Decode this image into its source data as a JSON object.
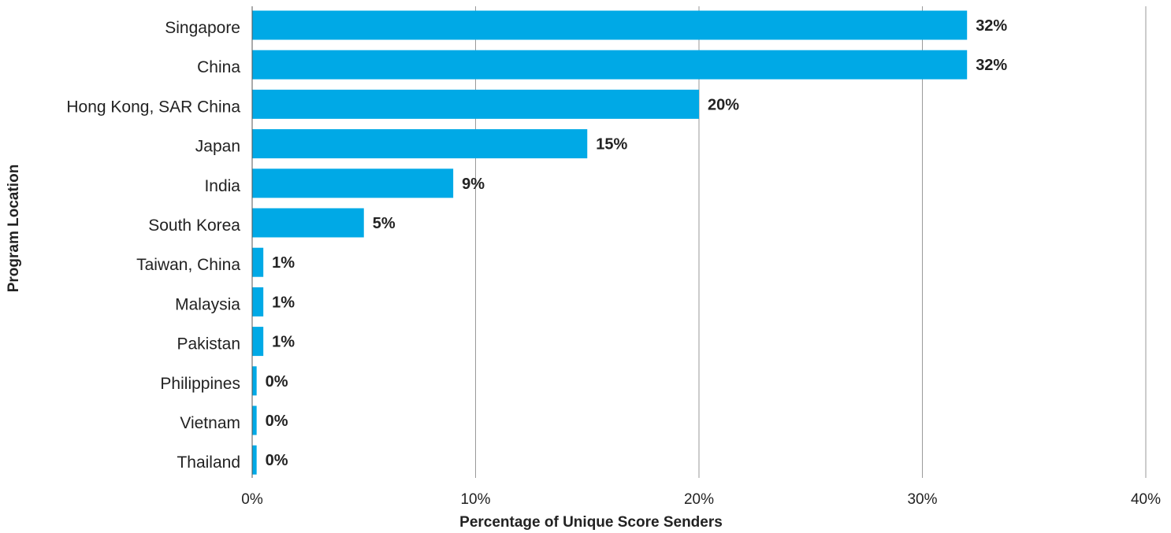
{
  "chart_data": {
    "type": "bar",
    "orientation": "horizontal",
    "categories": [
      "Singapore",
      "China",
      "Hong Kong, SAR China",
      "Japan",
      "India",
      "South Korea",
      "Taiwan, China",
      "Malaysia",
      "Pakistan",
      "Philippines",
      "Vietnam",
      "Thailand"
    ],
    "values": [
      32,
      32,
      20,
      15,
      9,
      5,
      0.5,
      0.5,
      0.5,
      0.2,
      0.2,
      0.2
    ],
    "value_labels": [
      "32%",
      "32%",
      "20%",
      "15%",
      "9%",
      "5%",
      "1%",
      "1%",
      "1%",
      "0%",
      "0%",
      "0%"
    ],
    "xticks": [
      0,
      10,
      20,
      30,
      40
    ],
    "xtick_labels": [
      "0%",
      "10%",
      "20%",
      "30%",
      "40%"
    ],
    "xlim": [
      0,
      40
    ],
    "xlabel": "Percentage of Unique Score Senders",
    "ylabel": "Program Location",
    "grid": "vertical",
    "bar_color": "#00A9E6",
    "gridline_color": "#9a9a9a",
    "text_color": "#222222"
  }
}
